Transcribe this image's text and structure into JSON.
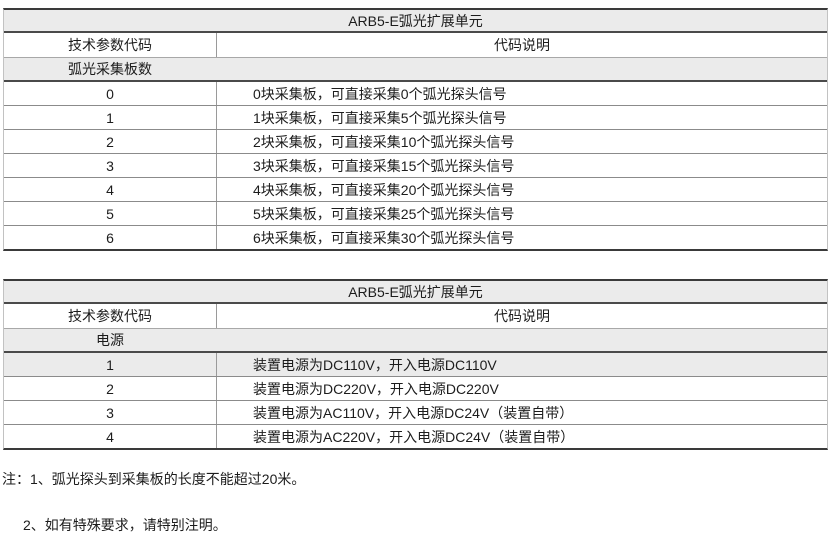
{
  "colors": {
    "row_shade": "#ebebeb",
    "border_dark": "#3a3a3a",
    "border_light": "#9a9a9a",
    "text": "#1c1c1c",
    "background": "#ffffff"
  },
  "tables": [
    {
      "title": "ARB5-E弧光扩展单元",
      "columns": [
        "技术参数代码",
        "代码说明"
      ],
      "section": "弧光采集板数",
      "rows": [
        {
          "code": "0",
          "desc": "0块采集板，可直接采集0个弧光探头信号",
          "shaded": false
        },
        {
          "code": "1",
          "desc": "1块采集板，可直接采集5个弧光探头信号",
          "shaded": false
        },
        {
          "code": "2",
          "desc": "2块采集板，可直接采集10个弧光探头信号",
          "shaded": false
        },
        {
          "code": "3",
          "desc": "3块采集板，可直接采集15个弧光探头信号",
          "shaded": false
        },
        {
          "code": "4",
          "desc": "4块采集板，可直接采集20个弧光探头信号",
          "shaded": false
        },
        {
          "code": "5",
          "desc": "5块采集板，可直接采集25个弧光探头信号",
          "shaded": false
        },
        {
          "code": "6",
          "desc": "6块采集板，可直接采集30个弧光探头信号",
          "shaded": false
        }
      ]
    },
    {
      "title": "ARB5-E弧光扩展单元",
      "columns": [
        "技术参数代码",
        "代码说明"
      ],
      "section": "电源",
      "rows": [
        {
          "code": "1",
          "desc": "装置电源为DC110V，开入电源DC110V",
          "shaded": true
        },
        {
          "code": "2",
          "desc": "装置电源为DC220V，开入电源DC220V",
          "shaded": false
        },
        {
          "code": "3",
          "desc": "装置电源为AC110V，开入电源DC24V（装置自带）",
          "shaded": false
        },
        {
          "code": "4",
          "desc": "装置电源为AC220V，开入电源DC24V（装置自带）",
          "shaded": false
        }
      ]
    }
  ],
  "notes": {
    "label": "注：",
    "items": [
      "1、弧光探头到采集板的长度不能超过20米。",
      "2、如有特殊要求，请特别注明。"
    ]
  }
}
